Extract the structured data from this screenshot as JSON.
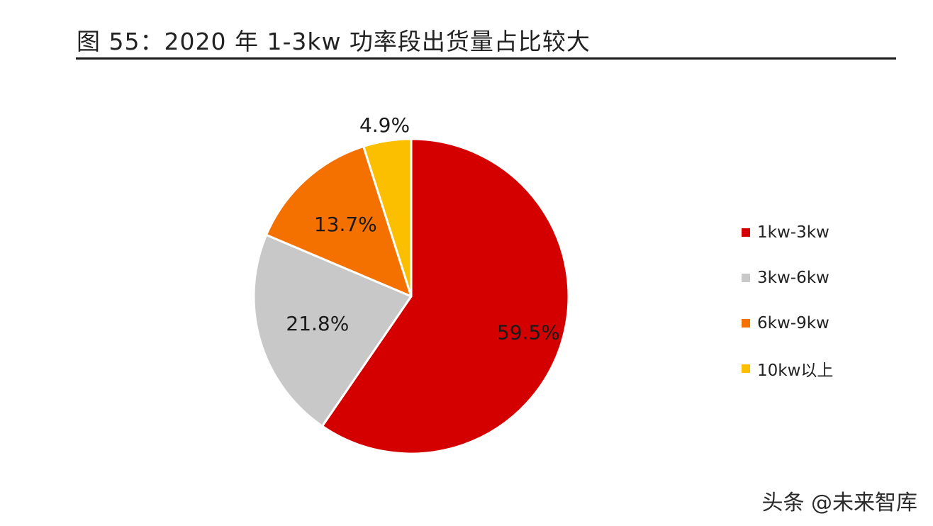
{
  "title": "图 55：2020 年 1-3kw 功率段出货量占比较大",
  "watermark": "头条 @未来智库",
  "chart_data": {
    "type": "pie",
    "title": "图 55：2020 年 1-3kw 功率段出货量占比较大",
    "legend_position": "right",
    "start_angle": "12 o'clock",
    "direction": "clockwise",
    "slices": [
      {
        "name": "1kw-3kw",
        "value": 59.5,
        "label": "59.5%",
        "color": "#d40000"
      },
      {
        "name": "3kw-6kw",
        "value": 21.8,
        "label": "21.8%",
        "color": "#c8c8c8"
      },
      {
        "name": "6kw-9kw",
        "value": 13.7,
        "label": "13.7%",
        "color": "#f47100"
      },
      {
        "name": "10kw以上",
        "value": 4.9,
        "label": "4.9%",
        "color": "#fbbf00"
      }
    ]
  }
}
